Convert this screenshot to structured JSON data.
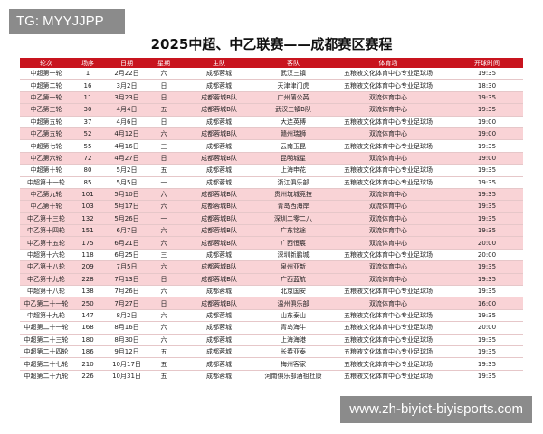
{
  "watermark_top": "TG: MYYJJPP",
  "watermark_bottom": "www.zh-biyict-biyisports.com",
  "header": {
    "title": "2025中超、中乙联赛——成都赛区赛程"
  },
  "table": {
    "columns": [
      "轮次",
      "场序",
      "日期",
      "星期",
      "主队",
      "客队",
      "体育场",
      "开球时间"
    ],
    "rows": [
      [
        "中超第一轮",
        "1",
        "2月22日",
        "六",
        "成都蓉城",
        "武汉三镇",
        "五粮液文化体育中心专业足球场",
        "19:35"
      ],
      [
        "中超第二轮",
        "16",
        "3月2日",
        "日",
        "成都蓉城",
        "天津津门虎",
        "五粮液文化体育中心专业足球场",
        "18:30"
      ],
      [
        "中乙第一轮",
        "11",
        "3月23日",
        "日",
        "成都蓉城B队",
        "广州蒲公英",
        "双流体育中心",
        "19:35"
      ],
      [
        "中乙第三轮",
        "30",
        "4月4日",
        "五",
        "成都蓉城B队",
        "武汉三镇B队",
        "双流体育中心",
        "19:35"
      ],
      [
        "中超第五轮",
        "37",
        "4月6日",
        "日",
        "成都蓉城",
        "大连英博",
        "五粮液文化体育中心专业足球场",
        "19:00"
      ],
      [
        "中乙第五轮",
        "52",
        "4月12日",
        "六",
        "成都蓉城B队",
        "赣州瑞狮",
        "双流体育中心",
        "19:00"
      ],
      [
        "中超第七轮",
        "55",
        "4月16日",
        "三",
        "成都蓉城",
        "云南玉昆",
        "五粮液文化体育中心专业足球场",
        "19:35"
      ],
      [
        "中乙第六轮",
        "72",
        "4月27日",
        "日",
        "成都蓉城B队",
        "昆明城星",
        "双流体育中心",
        "19:00"
      ],
      [
        "中超第十轮",
        "80",
        "5月2日",
        "五",
        "成都蓉城",
        "上海申花",
        "五粮液文化体育中心专业足球场",
        "19:35"
      ],
      [
        "中超第十一轮",
        "85",
        "5月5日",
        "一",
        "成都蓉城",
        "浙江俱乐部",
        "五粮液文化体育中心专业足球场",
        "19:35"
      ],
      [
        "中乙第九轮",
        "101",
        "5月10日",
        "六",
        "成都蓉城B队",
        "贵州筑城竞技",
        "双流体育中心",
        "19:35"
      ],
      [
        "中乙第十轮",
        "103",
        "5月17日",
        "六",
        "成都蓉城B队",
        "青岛西海岸",
        "双流体育中心",
        "19:35"
      ],
      [
        "中乙第十三轮",
        "132",
        "5月26日",
        "一",
        "成都蓉城B队",
        "深圳二零二八",
        "双流体育中心",
        "19:35"
      ],
      [
        "中乙第十四轮",
        "151",
        "6月7日",
        "六",
        "成都蓉城B队",
        "广东铭途",
        "双流体育中心",
        "19:35"
      ],
      [
        "中乙第十五轮",
        "175",
        "6月21日",
        "六",
        "成都蓉城B队",
        "广西恒宸",
        "双流体育中心",
        "20:00"
      ],
      [
        "中超第十六轮",
        "118",
        "6月25日",
        "三",
        "成都蓉城",
        "深圳新鹏城",
        "五粮液文化体育中心专业足球场",
        "20:00"
      ],
      [
        "中乙第十八轮",
        "209",
        "7月5日",
        "六",
        "成都蓉城B队",
        "泉州亚新",
        "双流体育中心",
        "19:35"
      ],
      [
        "中乙第十九轮",
        "228",
        "7月13日",
        "日",
        "成都蓉城B队",
        "广西蓝航",
        "双流体育中心",
        "19:35"
      ],
      [
        "中超第十八轮",
        "138",
        "7月26日",
        "六",
        "成都蓉城",
        "北京国安",
        "五粮液文化体育中心专业足球场",
        "19:35"
      ],
      [
        "中乙第二十一轮",
        "250",
        "7月27日",
        "日",
        "成都蓉城B队",
        "温州俱乐部",
        "双流体育中心",
        "16:00"
      ],
      [
        "中超第十九轮",
        "147",
        "8月2日",
        "六",
        "成都蓉城",
        "山东泰山",
        "五粮液文化体育中心专业足球场",
        "19:35"
      ],
      [
        "中超第二十一轮",
        "168",
        "8月16日",
        "六",
        "成都蓉城",
        "青岛海牛",
        "五粮液文化体育中心专业足球场",
        "20:00"
      ],
      [
        "中超第二十三轮",
        "180",
        "8月30日",
        "六",
        "成都蓉城",
        "上海海港",
        "五粮液文化体育中心专业足球场",
        "19:35"
      ],
      [
        "中超第二十四轮",
        "186",
        "9月12日",
        "五",
        "成都蓉城",
        "长春亚泰",
        "五粮液文化体育中心专业足球场",
        "19:35"
      ],
      [
        "中超第二十七轮",
        "210",
        "10月17日",
        "五",
        "成都蓉城",
        "梅州客家",
        "五粮液文化体育中心专业足球场",
        "19:35"
      ],
      [
        "中超第二十九轮",
        "226",
        "10月31日",
        "五",
        "成都蓉城",
        "河南俱乐部酒祖杜康",
        "五粮液文化体育中心专业足球场",
        "19:35"
      ]
    ]
  }
}
